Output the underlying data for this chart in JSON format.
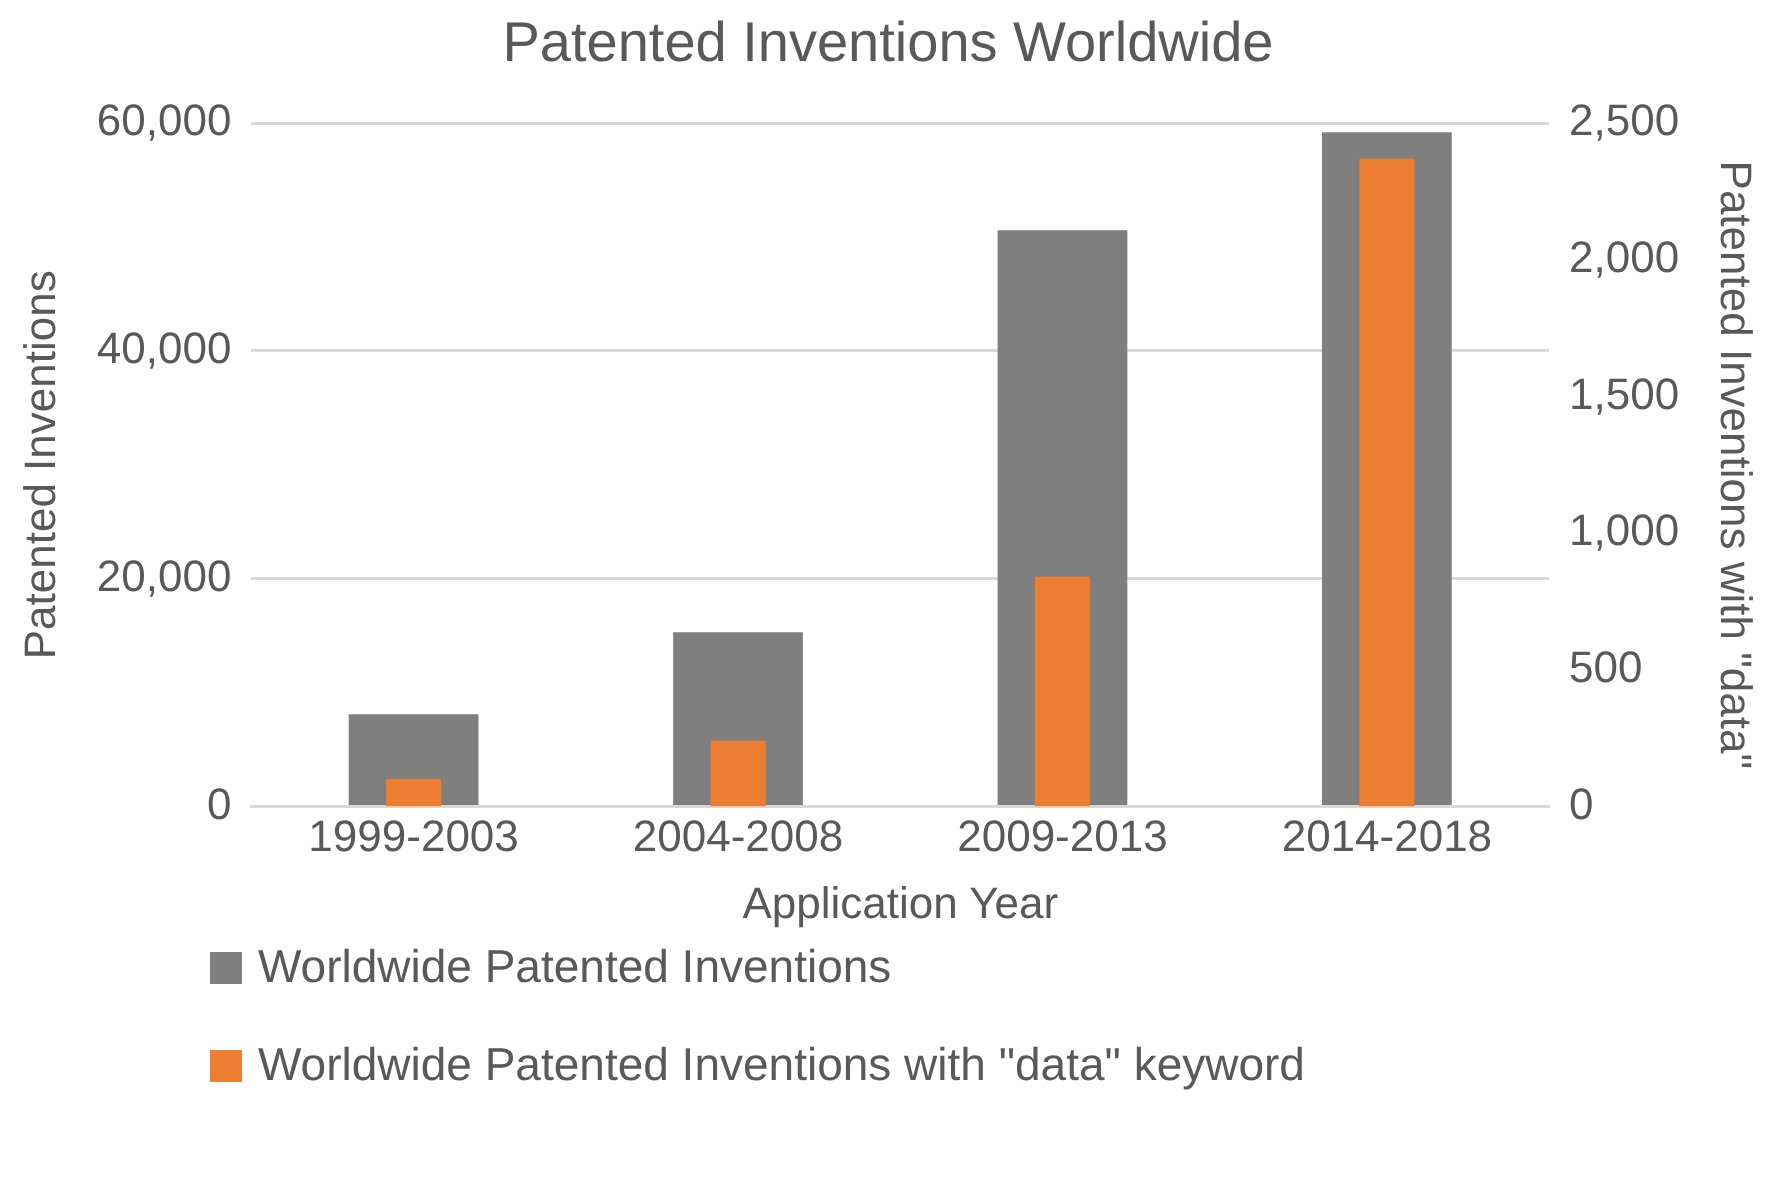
{
  "chart_data": {
    "type": "bar",
    "title": "Patented Inventions Worldwide",
    "xlabel": "Application Year",
    "ylabel": "Patented Inventions",
    "y2label": "Patented Inventions with \"data\"",
    "categories": [
      "1999-2003",
      "2004-2008",
      "2009-2013",
      "2014-2018"
    ],
    "series": [
      {
        "name": "Worldwide Patented Inventions",
        "color": "#7f7f7f",
        "values": [
          8100,
          15300,
          50600,
          59200
        ]
      },
      {
        "name": "Worldwide Patented Inventions with \"data\" keyword",
        "color": "#ed7d31",
        "values": [
          100,
          240,
          840,
          2370
        ],
        "axis": "y2"
      }
    ],
    "ylim": [
      0,
      60000
    ],
    "yticks": [
      {
        "value": 0,
        "label": "0"
      },
      {
        "value": 20000,
        "label": "20,000"
      },
      {
        "value": 40000,
        "label": "40,000"
      },
      {
        "value": 60000,
        "label": "60,000"
      }
    ],
    "y2lim": [
      0,
      2500
    ],
    "y2ticks": [
      {
        "value": 0,
        "label": "0"
      },
      {
        "value": 500,
        "label": "500"
      },
      {
        "value": 1000,
        "label": "1,000"
      },
      {
        "value": 1500,
        "label": "1,500"
      },
      {
        "value": 2000,
        "label": "2,000"
      },
      {
        "value": 2500,
        "label": "2,500"
      }
    ],
    "grid": "y",
    "legend": "bottom"
  }
}
